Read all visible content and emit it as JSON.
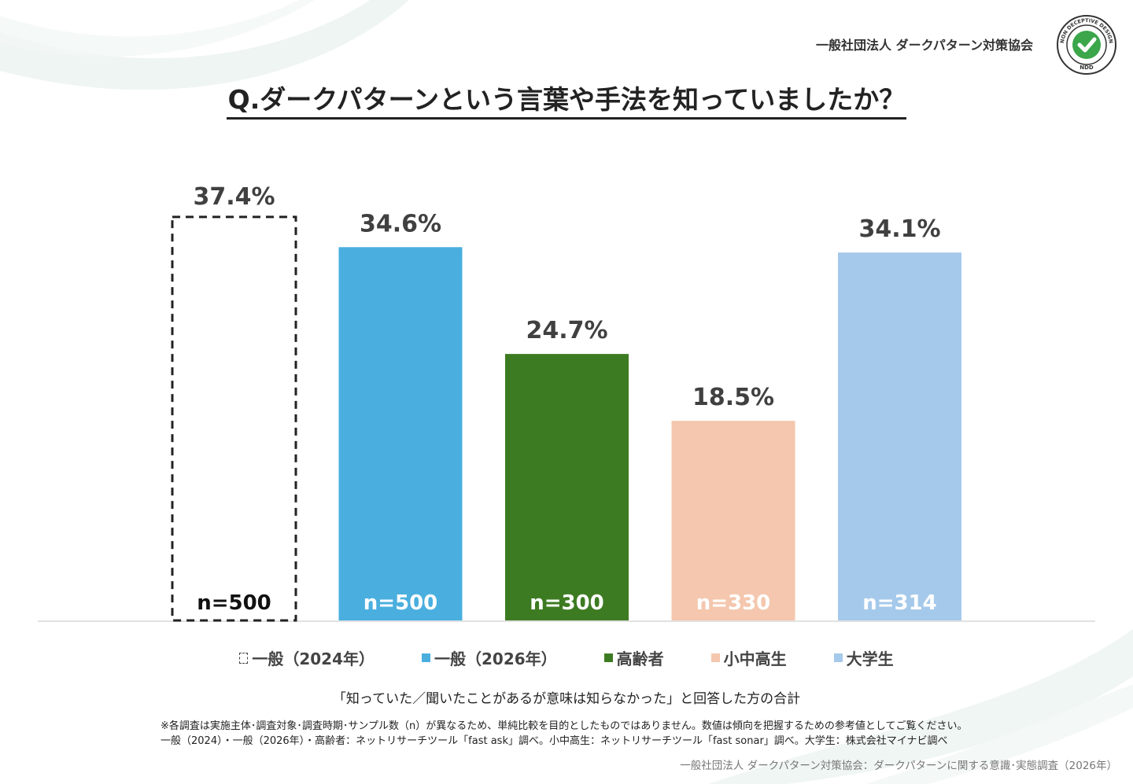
{
  "header": {
    "org_name": "一般社団法人 ダークパターン対策協会",
    "logo_icon": "non-deceptive-design-badge-icon",
    "logo_text_top": "NON DECEPTIVE DESIGN",
    "logo_text_bottom": "NDD"
  },
  "title": "Q.ダークパターンという言葉や手法を知っていましたか？",
  "chart_data": {
    "type": "bar",
    "categories": [
      "一般（2024年）",
      "一般（2026年）",
      "高齢者",
      "小中高生",
      "大学生"
    ],
    "values": [
      37.4,
      34.6,
      24.7,
      18.5,
      34.1
    ],
    "value_labels": [
      "37.4%",
      "34.6%",
      "24.7%",
      "18.5%",
      "34.1%"
    ],
    "sample_sizes": [
      "n=500",
      "n=500",
      "n=300",
      "n=330",
      "n=314"
    ],
    "colors": [
      "#ffffff",
      "#4aafdf",
      "#3d7b22",
      "#f4c7ae",
      "#a5c9ea"
    ],
    "dashed": [
      true,
      false,
      false,
      false,
      false
    ],
    "ylim": [
      0,
      40
    ],
    "grid": false,
    "legend_position": "bottom"
  },
  "legend": [
    {
      "label": "一般（2024年）",
      "color": "#ffffff",
      "dashed": true
    },
    {
      "label": "一般（2026年）",
      "color": "#4aafdf",
      "dashed": false
    },
    {
      "label": "高齢者",
      "color": "#3d7b22",
      "dashed": false
    },
    {
      "label": "小中高生",
      "color": "#f4c7ae",
      "dashed": false
    },
    {
      "label": "大学生",
      "color": "#a5c9ea",
      "dashed": false
    }
  ],
  "caption": "「知っていた／聞いたことがあるが意味は知らなかった」と回答した方の合計",
  "notes": {
    "line1": "※各調査は実施主体･調査対象･調査時期･サンプル数（n）が異なるため、単純比較を目的としたものではありません。数値は傾向を把握するための参考値としてご覧ください。",
    "line2": "一般（2024）・一般（2026年）・高齢者：ネットリサーチツール「fast ask」調べ。小中高生：ネットリサーチツール「fast sonar」調べ。大学生：株式会社マイナビ調べ"
  },
  "source": "一般社団法人 ダークパターン対策協会：ダークパターンに関する意識･実態調査（2026年）"
}
